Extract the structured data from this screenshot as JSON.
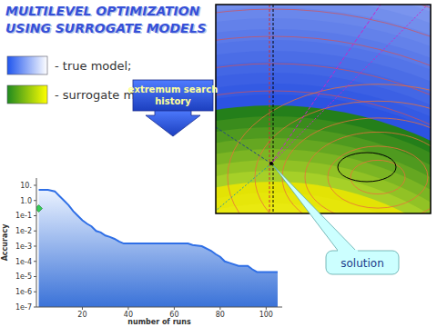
{
  "header": {
    "title": [
      "MULTILEVEL OPTIMIZATION",
      "USING SURROGATE MODELS"
    ]
  },
  "legend_items": [
    {
      "label": "- true model;"
    },
    {
      "label": "- surrogate model."
    }
  ],
  "callouts": {
    "history": [
      "extremum search",
      "history"
    ],
    "solution": "solution"
  },
  "chart_data": {
    "type": "line",
    "x_label": "number of runs",
    "y_label": "Accuracy",
    "log": "y",
    "xlim": [
      0,
      107
    ],
    "xticks": [
      20,
      40,
      60,
      80,
      100
    ],
    "ylim": [
      1e-07,
      30
    ],
    "yticks": [
      {
        "value": 10,
        "label": "10."
      },
      {
        "value": 1,
        "label": "1.0"
      },
      {
        "value": 0.1,
        "label": "1e-1"
      },
      {
        "value": 0.01,
        "label": "1e-2"
      },
      {
        "value": 0.001,
        "label": "1e-3"
      },
      {
        "value": 0.0001,
        "label": "1e-4"
      },
      {
        "value": 1e-05,
        "label": "1e-5"
      },
      {
        "value": 1e-06,
        "label": "1e-6"
      },
      {
        "value": 1e-07,
        "label": "1e-7"
      }
    ],
    "series": [
      {
        "type": "area",
        "color": "#2f6fe6",
        "x": [
          1,
          5,
          8,
          10,
          12,
          14,
          16,
          18,
          20,
          22,
          24,
          26,
          28,
          30,
          32,
          34,
          36,
          38,
          40,
          66,
          68,
          72,
          76,
          78,
          80,
          82,
          84,
          88,
          92,
          94,
          96,
          105
        ],
        "values": [
          5,
          5,
          4,
          2,
          1,
          0.5,
          0.2,
          0.1,
          0.05,
          0.03,
          0.02,
          0.01,
          0.008,
          0.005,
          0.004,
          0.003,
          0.002,
          0.0015,
          0.0015,
          0.0015,
          0.0012,
          0.001,
          0.0005,
          0.0003,
          0.0002,
          0.0001,
          8e-05,
          5e-05,
          5e-05,
          3e-05,
          2e-05,
          2e-05
        ]
      },
      {
        "type": "scatter",
        "color": "#33cc55",
        "marker": "diamond",
        "x": [
          1
        ],
        "values": [
          0.3
        ]
      }
    ]
  }
}
